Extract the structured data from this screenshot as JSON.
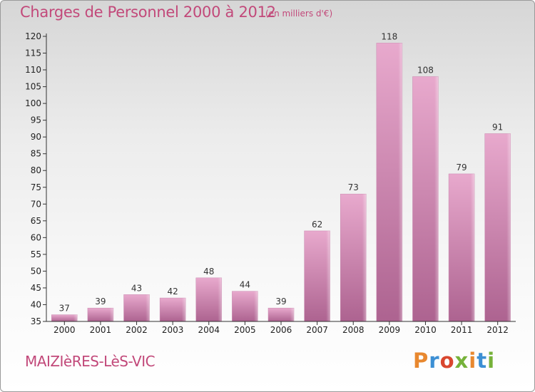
{
  "header": {
    "title": "Charges de Personnel 2000 à 2012",
    "unit": "(en milliers d'€)"
  },
  "footer": {
    "commune": "MAIZIèRES-LèS-VIC",
    "logo": [
      "P",
      "r",
      "o",
      "x",
      "i",
      "t",
      "i"
    ]
  },
  "chart_data": {
    "type": "bar",
    "title": "Charges de Personnel 2000 à 2012",
    "subtitle": "(en milliers d'€)",
    "xlabel": "",
    "ylabel": "",
    "categories": [
      "2000",
      "2001",
      "2002",
      "2003",
      "2004",
      "2005",
      "2006",
      "2007",
      "2008",
      "2009",
      "2010",
      "2011",
      "2012"
    ],
    "values": [
      37,
      39,
      43,
      42,
      48,
      44,
      39,
      62,
      73,
      118,
      108,
      79,
      91
    ],
    "ylim": [
      35,
      120
    ],
    "yticks": [
      35,
      40,
      45,
      50,
      55,
      60,
      65,
      70,
      75,
      80,
      85,
      90,
      95,
      100,
      105,
      110,
      115,
      120
    ],
    "grid": false,
    "legend": "none",
    "colors": {
      "bar_top": "#e5a3c9",
      "bar_bottom": "#b0648f",
      "text": "#c2497a"
    }
  }
}
